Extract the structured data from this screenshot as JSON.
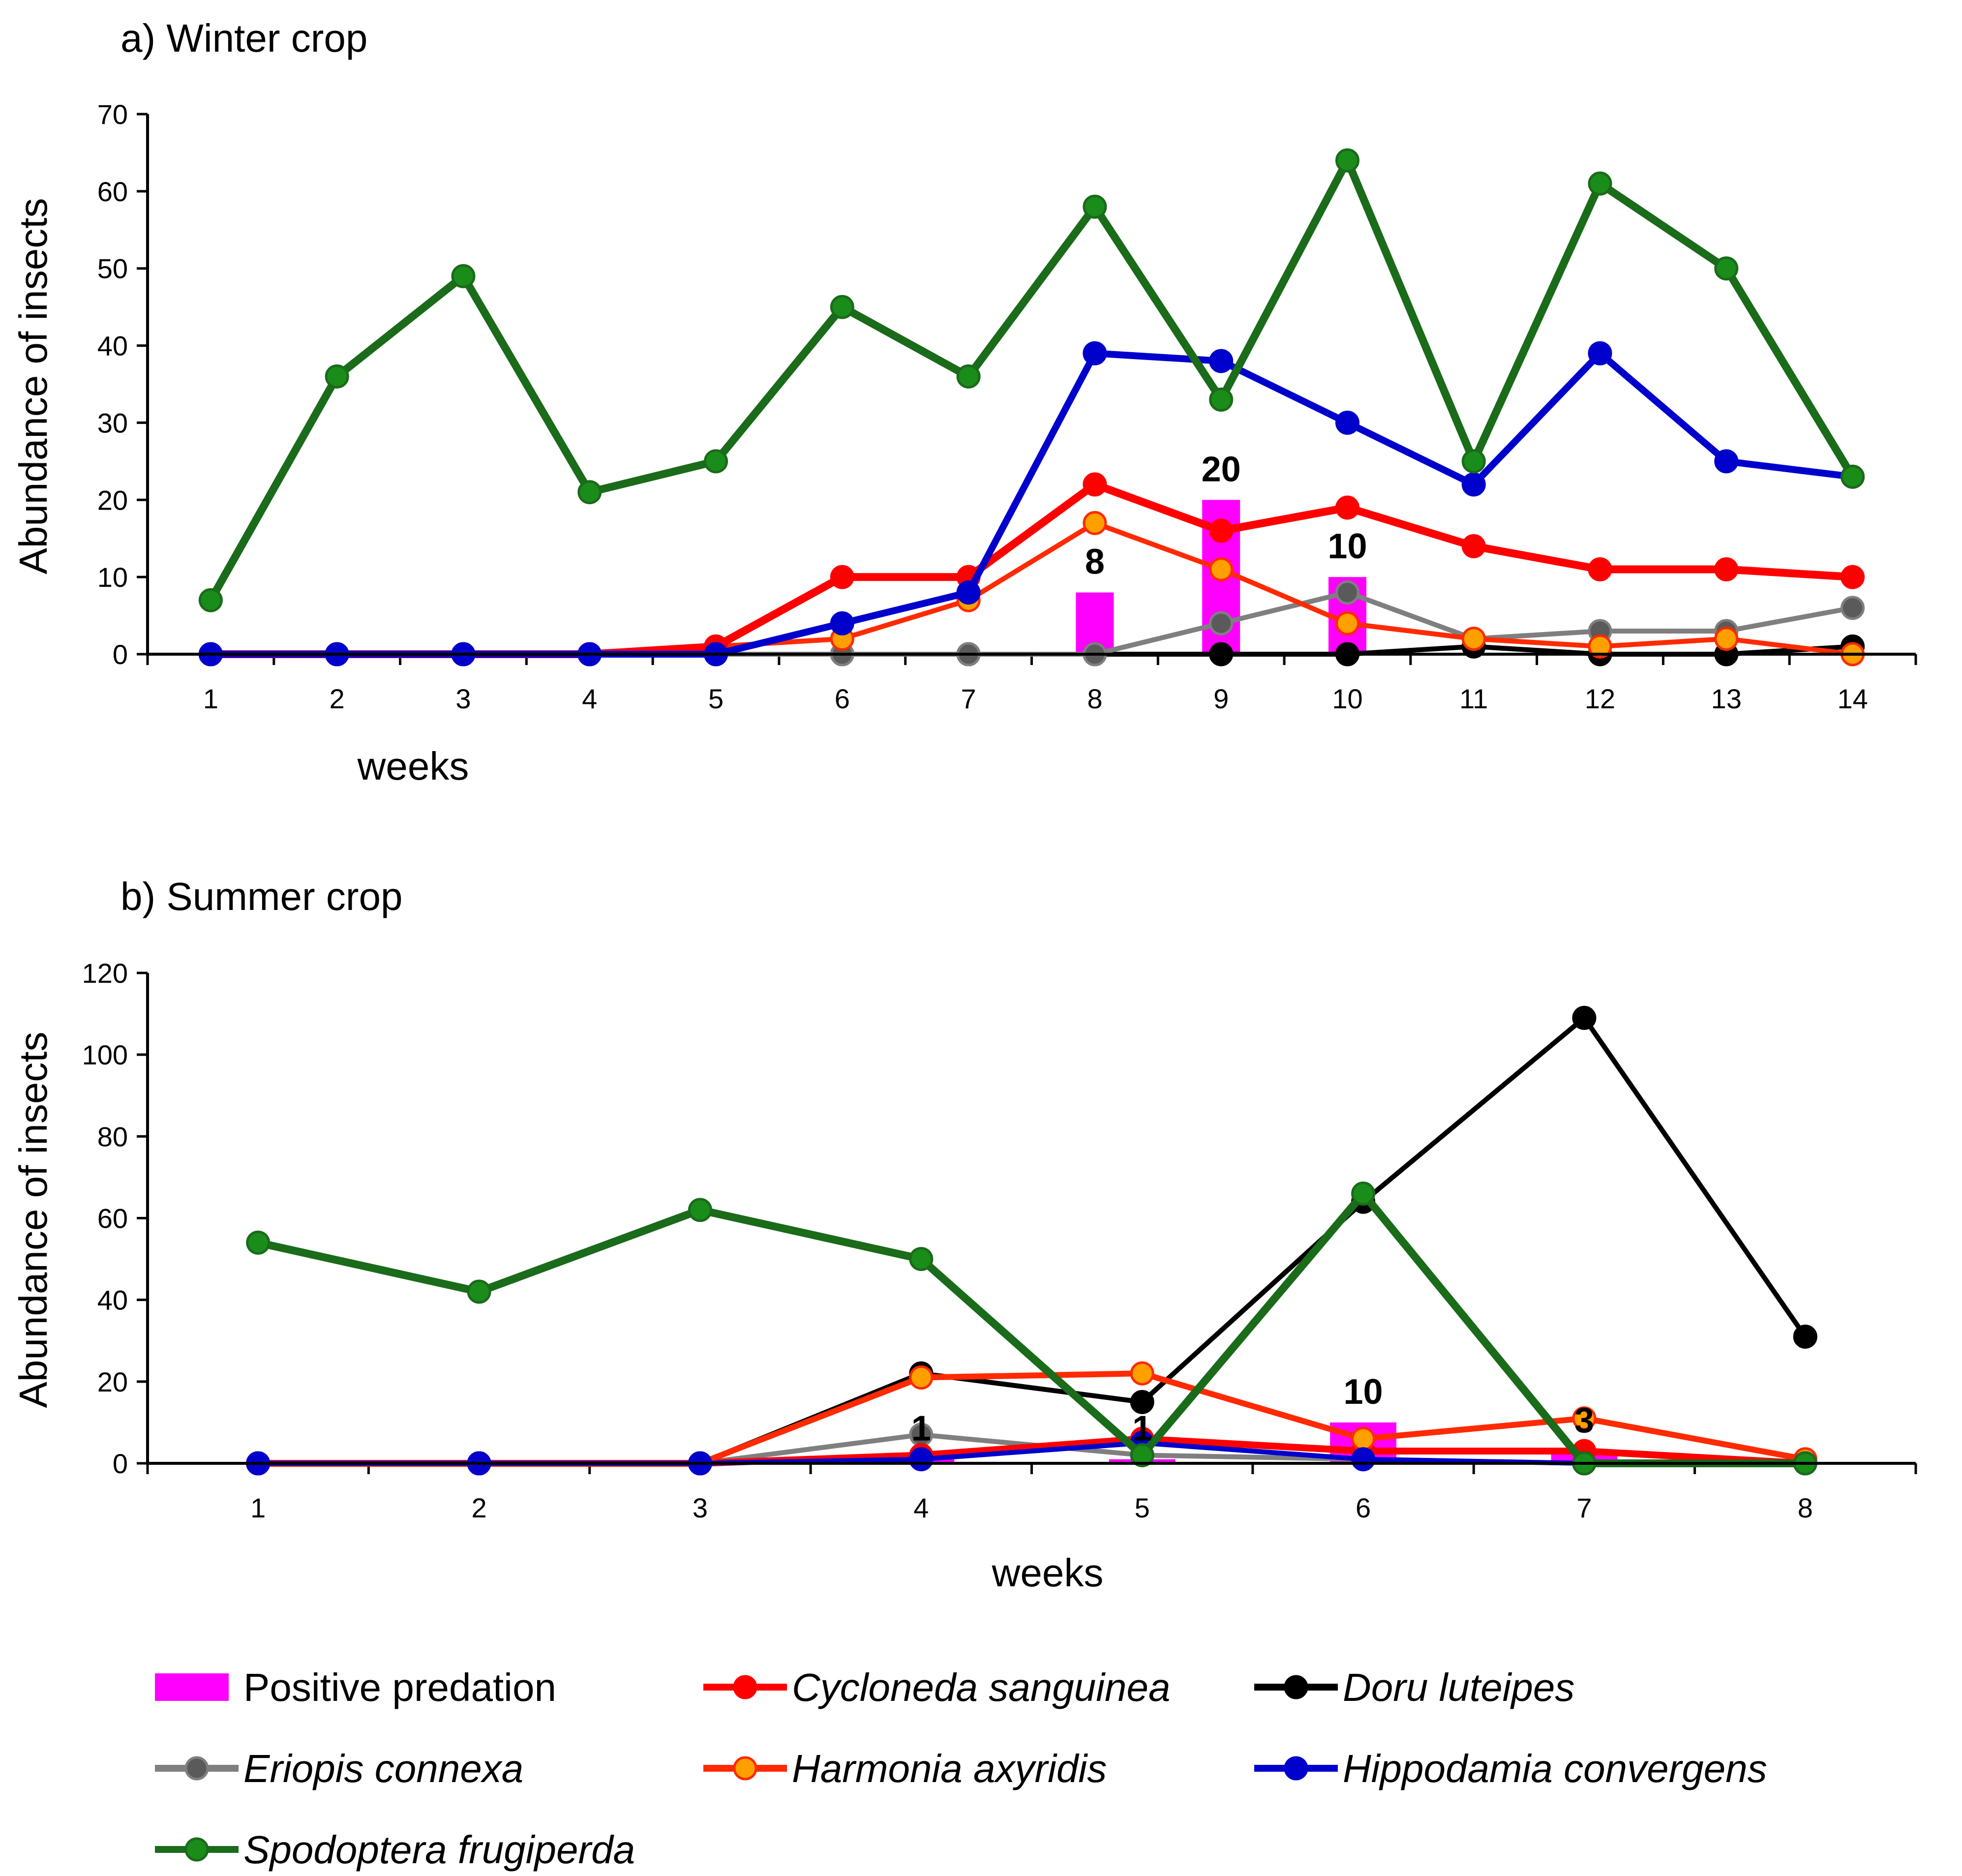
{
  "chart_data": [
    {
      "type": "line",
      "title": "a) Winter crop",
      "xlabel": "weeks",
      "ylabel": "Abundance of insects",
      "ylim": [
        0,
        70
      ],
      "yticks": [
        0,
        10,
        20,
        30,
        40,
        50,
        60,
        70
      ],
      "x": [
        1,
        2,
        3,
        4,
        5,
        6,
        7,
        8,
        9,
        10,
        11,
        12,
        13,
        14
      ],
      "bars": {
        "name": "Positive predation",
        "color": "#ff00ff",
        "points": [
          {
            "x": 8,
            "value": 8,
            "label": "8"
          },
          {
            "x": 9,
            "value": 20,
            "label": "20"
          },
          {
            "x": 10,
            "value": 10,
            "label": "10"
          }
        ]
      },
      "series": [
        {
          "name": "Doru luteipes",
          "color": "#000000",
          "marker": "#000000",
          "width": 10,
          "values": [
            0,
            0,
            0,
            0,
            0,
            0,
            0,
            0,
            0,
            0,
            1,
            0,
            0,
            1
          ]
        },
        {
          "name": "Eriopis connexa",
          "color": "#7f7f7f",
          "marker": "#5a5a5a",
          "width": 10,
          "values": [
            0,
            0,
            0,
            0,
            0,
            0,
            0,
            0,
            4,
            8,
            2,
            3,
            3,
            6
          ]
        },
        {
          "name": "Harmonia axyridis",
          "color": "#ff2a00",
          "marker": "#ffa000",
          "width": 10,
          "values": [
            0,
            0,
            0,
            0,
            1,
            2,
            7,
            17,
            11,
            4,
            2,
            1,
            2,
            0
          ]
        },
        {
          "name": "Cycloneda sanguinea",
          "color": "#ff0000",
          "marker": "#ff0000",
          "width": 16,
          "values": [
            0,
            0,
            0,
            0,
            1,
            10,
            10,
            22,
            16,
            19,
            14,
            11,
            11,
            10
          ]
        },
        {
          "name": "Hippodamia convergens",
          "color": "#0000cc",
          "marker": "#0000cc",
          "width": 14,
          "values": [
            0,
            0,
            0,
            0,
            0,
            4,
            8,
            39,
            38,
            30,
            22,
            39,
            25,
            23
          ]
        },
        {
          "name": "Spodoptera frugiperda",
          "color": "#1a6b1a",
          "marker": "#1a8c1a",
          "width": 16,
          "values": [
            7,
            36,
            49,
            21,
            25,
            45,
            36,
            58,
            33,
            64,
            25,
            61,
            50,
            23
          ]
        }
      ]
    },
    {
      "type": "line",
      "title": "b) Summer crop",
      "xlabel": "weeks",
      "ylabel": "Abundance of insects",
      "ylim": [
        0,
        120
      ],
      "yticks": [
        0,
        20,
        40,
        60,
        80,
        100,
        120
      ],
      "x": [
        1,
        2,
        3,
        4,
        5,
        6,
        7,
        8
      ],
      "bars": {
        "name": "Positive predation",
        "color": "#ff00ff",
        "points": [
          {
            "x": 4,
            "value": 1,
            "label": "1"
          },
          {
            "x": 5,
            "value": 1,
            "label": "1"
          },
          {
            "x": 6,
            "value": 10,
            "label": "10"
          },
          {
            "x": 7,
            "value": 3,
            "label": "3"
          }
        ]
      },
      "series": [
        {
          "name": "Doru luteipes",
          "color": "#000000",
          "marker": "#000000",
          "width": 10,
          "values": [
            0,
            0,
            0,
            22,
            15,
            64,
            109,
            31
          ]
        },
        {
          "name": "Eriopis connexa",
          "color": "#7f7f7f",
          "marker": "#5a5a5a",
          "width": 10,
          "values": [
            0,
            0,
            0,
            7,
            2,
            1,
            0,
            0
          ]
        },
        {
          "name": "Cycloneda sanguinea",
          "color": "#ff0000",
          "marker": "#ff0000",
          "width": 14,
          "values": [
            0,
            0,
            0,
            2,
            6,
            3,
            3,
            0
          ]
        },
        {
          "name": "Harmonia axyridis",
          "color": "#ff2a00",
          "marker": "#ffa000",
          "width": 12,
          "values": [
            0,
            0,
            0,
            21,
            22,
            6,
            11,
            1
          ]
        },
        {
          "name": "Hippodamia convergens",
          "color": "#0000cc",
          "marker": "#0000cc",
          "width": 10,
          "values": [
            0,
            0,
            0,
            1,
            5,
            1,
            0,
            0
          ]
        },
        {
          "name": "Spodoptera frugiperda",
          "color": "#1a6b1a",
          "marker": "#1a8c1a",
          "width": 16,
          "values": [
            54,
            42,
            62,
            50,
            2,
            66,
            0,
            0
          ]
        }
      ]
    }
  ],
  "legend": {
    "position": "bottom",
    "items": [
      {
        "label": "Positive predation",
        "kind": "bar",
        "color": "#ff00ff",
        "italic": false
      },
      {
        "label": "Cycloneda sanguinea",
        "kind": "line",
        "color": "#ff0000",
        "marker": "#ff0000",
        "italic": true
      },
      {
        "label": "Doru luteipes",
        "kind": "line",
        "color": "#000000",
        "marker": "#000000",
        "italic": true
      },
      {
        "label": "Eriopis connexa",
        "kind": "line",
        "color": "#7f7f7f",
        "marker": "#5a5a5a",
        "italic": true
      },
      {
        "label": "Harmonia axyridis",
        "kind": "line",
        "color": "#ff2a00",
        "marker": "#ffa000",
        "italic": true
      },
      {
        "label": "Hippodamia convergens",
        "kind": "line",
        "color": "#0000cc",
        "marker": "#0000cc",
        "italic": true
      },
      {
        "label": "Spodoptera frugiperda",
        "kind": "line",
        "color": "#1a6b1a",
        "marker": "#1a8c1a",
        "italic": true
      }
    ]
  }
}
